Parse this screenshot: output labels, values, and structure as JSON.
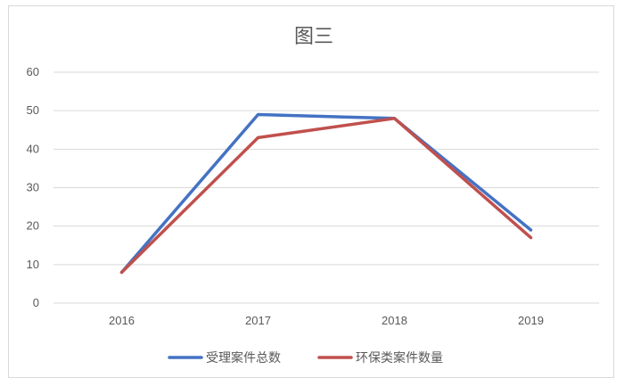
{
  "chart_data": {
    "type": "line",
    "title": "图三",
    "categories": [
      "2016",
      "2017",
      "2018",
      "2019"
    ],
    "series": [
      {
        "name": "受理案件总数",
        "values": [
          8,
          49,
          48,
          19
        ],
        "color": "#4472c4"
      },
      {
        "name": "环保类案件数量",
        "values": [
          8,
          43,
          48,
          17
        ],
        "color": "#c0504d"
      }
    ],
    "ylim": [
      0,
      60
    ],
    "yticks": [
      "0",
      "10",
      "20",
      "30",
      "40",
      "50",
      "60"
    ],
    "grid": true,
    "legend": "bottom"
  }
}
